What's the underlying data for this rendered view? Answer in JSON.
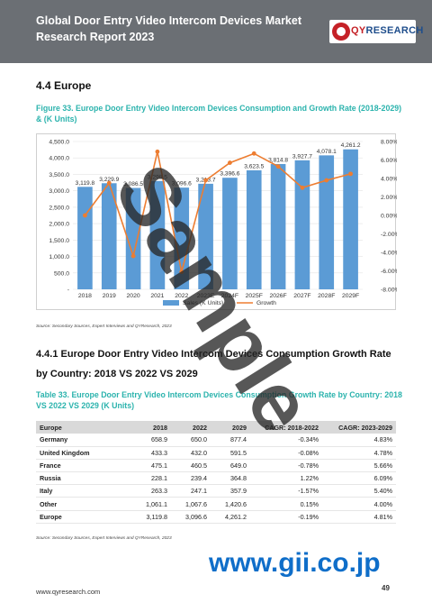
{
  "header": {
    "title": "Global Door Entry Video Intercom Devices Market Research Report 2023",
    "logo_prefix": "QY",
    "logo_suffix": "RESEARCH"
  },
  "section": {
    "heading": "4.4  Europe"
  },
  "figure": {
    "title": "Figure 33.  Europe Door Entry Video Intercom Devices Consumption and Growth Rate (2018-2029) & (K Units)",
    "source": "Source: Secondary Sources, Expert Interviews and QYResearch, 2023"
  },
  "chart_data": {
    "type": "bar",
    "categories": [
      "2018",
      "2019",
      "2020",
      "2021",
      "2022",
      "2023E",
      "2024F",
      "2025F",
      "2026F",
      "2027F",
      "2028F",
      "2029F"
    ],
    "series": [
      {
        "name": "Sales (K Units)",
        "type": "bar",
        "axis": "left",
        "color": "#5b9bd5",
        "values": [
          3119.8,
          3229.9,
          3086.5,
          3298.5,
          3096.6,
          3213.7,
          3396.6,
          3623.5,
          3814.8,
          3927.7,
          4078.1,
          4261.2
        ],
        "labels": [
          "3,119.8",
          "3,229.9",
          "3,086.5",
          "3,298.5",
          "3,096.6",
          "3,213.7",
          "3,396.6",
          "3,623.5",
          "3,814.8",
          "3,927.7",
          "4,078.1",
          "4,261.2"
        ]
      },
      {
        "name": "Growth",
        "type": "line",
        "axis": "right",
        "color": "#ed7d31",
        "values": [
          0.0,
          3.5,
          -4.4,
          6.9,
          -6.1,
          3.8,
          5.7,
          6.7,
          5.3,
          3.0,
          3.8,
          4.5
        ]
      }
    ],
    "ylim_left": [
      0,
      4500
    ],
    "yticks_left": [
      "-",
      "500.0",
      "1,000.0",
      "1,500.0",
      "2,000.0",
      "2,500.0",
      "3,000.0",
      "3,500.0",
      "4,000.0",
      "4,500.0"
    ],
    "ylim_right": [
      -8,
      8
    ],
    "yticks_right": [
      "-8.00%",
      "-6.00%",
      "-4.00%",
      "-2.00%",
      "0.00%",
      "2.00%",
      "4.00%",
      "6.00%",
      "8.00%"
    ],
    "legend_position": "bottom"
  },
  "subsection": {
    "heading": "4.4.1  Europe Door Entry Video Intercom Devices Consumption Growth Rate by Country: 2018 VS 2022 VS 2029"
  },
  "table": {
    "title": "Table 33.  Europe Door Entry Video Intercom Devices Consumption Growth Rate by Country: 2018 VS 2022 VS 2029 (K Units)",
    "headers": [
      "Europe",
      "2018",
      "2022",
      "2029",
      "CAGR: 2018-2022",
      "CAGR: 2023-2029"
    ],
    "rows": [
      [
        "Germany",
        "658.9",
        "650.0",
        "877.4",
        "-0.34%",
        "4.83%"
      ],
      [
        "United Kingdom",
        "433.3",
        "432.0",
        "591.5",
        "-0.08%",
        "4.78%"
      ],
      [
        "France",
        "475.1",
        "460.5",
        "649.0",
        "-0.78%",
        "5.66%"
      ],
      [
        "Russia",
        "228.1",
        "239.4",
        "364.8",
        "1.22%",
        "6.09%"
      ],
      [
        "Italy",
        "263.3",
        "247.1",
        "357.9",
        "-1.57%",
        "5.40%"
      ],
      [
        "Other",
        "1,061.1",
        "1,067.6",
        "1,420.6",
        "0.15%",
        "4.00%"
      ],
      [
        "Europe",
        "3,119.8",
        "3,096.6",
        "4,261.2",
        "-0.19%",
        "4.81%"
      ]
    ],
    "source": "Source: Secondary Sources, Expert Interviews and QYResearch, 2023"
  },
  "footer": {
    "url": "www.qyresearch.com",
    "page": "49"
  },
  "watermark": {
    "text": "Sample",
    "site": "www.gii.co.jp"
  }
}
